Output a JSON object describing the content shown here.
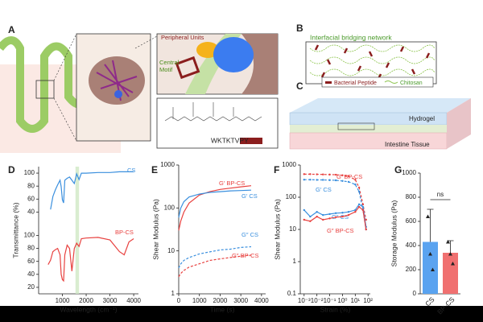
{
  "panels": [
    "A",
    "B",
    "C",
    "D",
    "E",
    "F",
    "G"
  ],
  "diagram": {
    "peripheral": "Peripheral Units",
    "central": [
      "Central",
      "Motif"
    ],
    "sequence": "WKTKTVPY",
    "network_title": "Interfacial bridging network",
    "legend_peptide": "Bacterial Peptide",
    "legend_chitosan": "Chitosan",
    "hydrogel": "Hydrogel",
    "tissue": "Intestine Tissue"
  },
  "chart_data": [
    {
      "type": "line",
      "xlabel": "Wavelength (cm⁻¹)",
      "ylabel": "Transmittance (%)",
      "x": [
        400,
        500,
        600,
        700,
        800,
        900,
        950,
        1000,
        1050,
        1100,
        1200,
        1300,
        1400,
        1500,
        1600,
        1700,
        1800,
        2000,
        2500,
        3000,
        3400,
        3600,
        3800,
        4000
      ],
      "series": [
        {
          "name": "CS",
          "color": "#3a8fde",
          "values": [
            null,
            140,
            160,
            170,
            178,
            185,
            175,
            155,
            150,
            185,
            188,
            190,
            185,
            180,
            195,
            186,
            196,
            196,
            197,
            197,
            198,
            198,
            198,
            198
          ]
        },
        {
          "name": "BP-CS",
          "color": "#e8413f",
          "values": [
            55,
            62,
            75,
            78,
            80,
            70,
            40,
            32,
            30,
            70,
            85,
            80,
            45,
            80,
            88,
            83,
            95,
            96,
            97,
            93,
            75,
            70,
            90,
            95
          ]
        }
      ],
      "shaded_band": [
        1550,
        1700
      ],
      "shaded_color": "#cfe8c4",
      "xlim": [
        0,
        4200
      ],
      "xticks": [
        1000,
        2000,
        3000,
        4000
      ],
      "ylim": [
        10,
        206
      ],
      "yticks": [
        {
          "value": 196,
          "label": "100"
        },
        {
          "value": 176,
          "label": "80"
        },
        {
          "value": 156,
          "label": "60"
        },
        {
          "value": 136,
          "label": "40"
        },
        100,
        80,
        60,
        40,
        20
      ]
    },
    {
      "type": "line",
      "xlabel": "Time (s)",
      "ylabel": "Shear Modulus (Pa)",
      "yscale": "log",
      "x": [
        0,
        100,
        250,
        500,
        1000,
        1500,
        2000,
        2500,
        3000,
        3500
      ],
      "series": [
        {
          "name": "G′ BP-CS",
          "color": "#e8413f",
          "values": [
            30,
            50,
            80,
            130,
            200,
            240,
            270,
            290,
            310,
            330
          ]
        },
        {
          "name": "G′ CS",
          "color": "#3a8fde",
          "values": [
            60,
            100,
            140,
            180,
            210,
            230,
            240,
            250,
            255,
            260
          ]
        },
        {
          "name": "G″ CS",
          "color": "#3a8fde",
          "dash": true,
          "values": [
            4,
            5,
            6,
            7,
            8.5,
            9.5,
            10.5,
            11,
            12,
            12.5
          ]
        },
        {
          "name": "G″ BP-CS",
          "color": "#e8413f",
          "dash": true,
          "values": [
            2.5,
            3,
            3.5,
            4.2,
            5,
            6,
            6.5,
            7,
            7.5,
            8
          ]
        }
      ],
      "xlim": [
        0,
        4200
      ],
      "xticks": [
        0,
        1000,
        2000,
        3000,
        4000
      ],
      "ylim": [
        1,
        1000
      ],
      "yticks": [
        1,
        10,
        100,
        1000
      ]
    },
    {
      "type": "line",
      "xlabel": "Strain (%)",
      "ylabel": "Shear Modulus (Pa)",
      "xscale": "log",
      "yscale": "log",
      "markers": true,
      "x": [
        0.001,
        0.003,
        0.01,
        0.03,
        0.1,
        0.3,
        1,
        3,
        10,
        20,
        40,
        70
      ],
      "series": [
        {
          "name": "G′ BP-CS",
          "color": "#e8413f",
          "dash": true,
          "values": [
            520,
            520,
            515,
            510,
            505,
            500,
            480,
            450,
            350,
            200,
            60,
            20
          ]
        },
        {
          "name": "G′ CS",
          "color": "#3a8fde",
          "dash": true,
          "values": [
            350,
            350,
            345,
            345,
            340,
            335,
            320,
            300,
            250,
            150,
            40,
            10
          ]
        },
        {
          "name": "G″ CS",
          "color": "#3a8fde",
          "values": [
            40,
            25,
            35,
            28,
            30,
            32,
            33,
            35,
            40,
            60,
            50,
            12
          ]
        },
        {
          "name": "G″ BP-CS",
          "color": "#e8413f",
          "values": [
            20,
            18,
            25,
            20,
            22,
            24,
            25,
            28,
            35,
            50,
            40,
            10
          ]
        }
      ],
      "xlim": [
        0.0005,
        150
      ],
      "xticks": [
        {
          "value": 0.001,
          "label": "10⁻³"
        },
        {
          "value": 0.01,
          "label": "10⁻²"
        },
        {
          "value": 0.1,
          "label": "10⁻¹"
        },
        {
          "value": 1,
          "label": "10⁰"
        },
        {
          "value": 10,
          "label": "10¹"
        },
        {
          "value": 100,
          "label": "10²"
        }
      ],
      "ylim": [
        0.1,
        1000
      ],
      "yticks": [
        0.1,
        1,
        10,
        100,
        1000
      ]
    },
    {
      "type": "bar",
      "ylabel": "Storage Modulus (Pa)",
      "categories": [
        "CS",
        "BP-CS"
      ],
      "values": [
        430,
        340
      ],
      "errors": [
        270,
        100
      ],
      "colors": [
        "#5aa3f0",
        "#f07070"
      ],
      "points": [
        [
          640,
          330,
          200
        ],
        [
          430,
          330,
          250
        ]
      ],
      "annotation": "ns",
      "ylim": [
        0,
        1000
      ],
      "yticks": [
        0,
        200,
        400,
        600,
        800,
        1000
      ]
    }
  ]
}
